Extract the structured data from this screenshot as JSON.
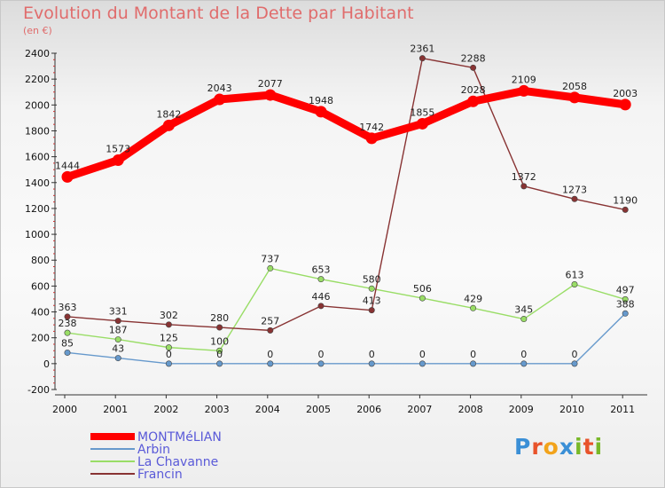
{
  "header": {
    "title": "Evolution du Montant de la Dette par Habitant",
    "subtitle": "(en €)"
  },
  "logo": {
    "text": "Proxiti",
    "letters": [
      {
        "ch": "P",
        "color": "#3a8fd6"
      },
      {
        "ch": "r",
        "color": "#e8532b"
      },
      {
        "ch": "o",
        "color": "#f2a31b"
      },
      {
        "ch": "x",
        "color": "#3a8fd6"
      },
      {
        "ch": "i",
        "color": "#79b829"
      },
      {
        "ch": "t",
        "color": "#e8532b"
      },
      {
        "ch": "i",
        "color": "#79b829"
      }
    ]
  },
  "chart_data": {
    "type": "line",
    "title": "Evolution du Montant de la Dette par Habitant",
    "subtitle": "(en €)",
    "x": [
      "2000",
      "2001",
      "2002",
      "2003",
      "2004",
      "2005",
      "2006",
      "2007",
      "2008",
      "2009",
      "2010",
      "2011"
    ],
    "ylim": [
      -200,
      2400
    ],
    "yticks": [
      -200,
      0,
      200,
      400,
      600,
      800,
      1000,
      1200,
      1400,
      1600,
      1800,
      2000,
      2200,
      2400
    ],
    "legend_position": "bottom-left",
    "series": [
      {
        "name": "MONTMéLIAN",
        "color": "#ff0000",
        "values": [
          1444,
          1573,
          1842,
          2043,
          2077,
          1948,
          1742,
          1855,
          2028,
          2109,
          2058,
          2003
        ]
      },
      {
        "name": "Arbin",
        "color": "#6699cc",
        "values": [
          85,
          43,
          0,
          0,
          0,
          0,
          0,
          0,
          0,
          0,
          0,
          388
        ]
      },
      {
        "name": "La Chavanne",
        "color": "#99dd66",
        "values": [
          238,
          187,
          125,
          100,
          737,
          653,
          580,
          506,
          429,
          345,
          613,
          497
        ]
      },
      {
        "name": "Francin",
        "color": "#883333",
        "values": [
          363,
          331,
          302,
          280,
          257,
          446,
          413,
          2361,
          2288,
          1372,
          1273,
          1190
        ]
      }
    ]
  }
}
